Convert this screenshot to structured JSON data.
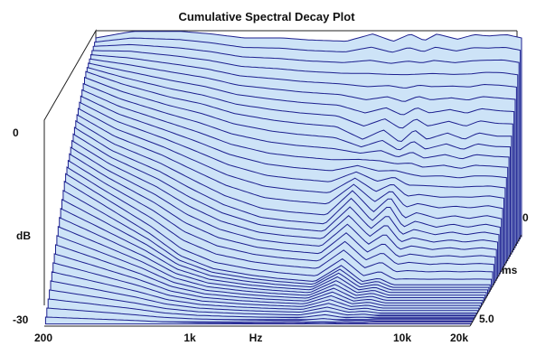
{
  "chart_data": {
    "type": "area",
    "title": "Cumulative Spectral Decay Plot",
    "xlabel": "Hz",
    "ylabel": "dB",
    "zlabel": "ms",
    "x_scale": "log",
    "xlim": [
      200,
      20000
    ],
    "ylim": [
      -30,
      0
    ],
    "zlim": [
      0,
      5.0
    ],
    "x_ticks": [
      "200",
      "1k",
      "10k",
      "20k"
    ],
    "y_ticks": [
      "0",
      "-30"
    ],
    "z_ticks": [
      "0",
      "5.0"
    ],
    "fill_color": "#cde3f7",
    "line_color": "#1c1f8f",
    "slices": 42,
    "x": [
      200,
      300,
      500,
      700,
      1000,
      1500,
      2000,
      3000,
      4000,
      5000,
      6000,
      7000,
      8000,
      10000,
      12000,
      14000,
      17000,
      20000
    ],
    "series": [
      {
        "ms": 0.0,
        "values": [
          0.0,
          1.0,
          1.0,
          0.6,
          0.0,
          0.0,
          -0.3,
          -0.5,
          0.6,
          -0.5,
          0.6,
          -0.4,
          0.6,
          -0.2,
          0.5,
          0.3,
          0.5,
          0.0
        ]
      },
      {
        "ms": 1.0,
        "values": [
          -2.5,
          -4.5,
          -6.5,
          -7.5,
          -9.0,
          -10.0,
          -10.5,
          -11.0,
          -13.0,
          -11.5,
          -13.5,
          -11.5,
          -13.0,
          -12.0,
          -13.0,
          -12.0,
          -12.5,
          -12.5
        ]
      },
      {
        "ms": 2.0,
        "values": [
          -7.5,
          -11.0,
          -14.0,
          -16.5,
          -19.0,
          -21.0,
          -21.5,
          -22.0,
          -18.0,
          -21.5,
          -19.0,
          -22.5,
          -21.5,
          -22.5,
          -22.0,
          -22.5,
          -22.0,
          -22.5
        ]
      },
      {
        "ms": 3.0,
        "values": [
          -13.0,
          -16.5,
          -21.0,
          -24.5,
          -26.5,
          -27.5,
          -28.0,
          -28.5,
          -26.0,
          -28.5,
          -28.0,
          -29.0,
          -29.0,
          -29.0,
          -29.0,
          -29.0,
          -29.0,
          -29.0
        ]
      },
      {
        "ms": 5.0,
        "values": [
          -30,
          -30,
          -30,
          -30,
          -30,
          -30,
          -30,
          -30,
          -30,
          -30,
          -30,
          -30,
          -30,
          -30,
          -30,
          -30,
          -30,
          -30
        ]
      }
    ]
  }
}
